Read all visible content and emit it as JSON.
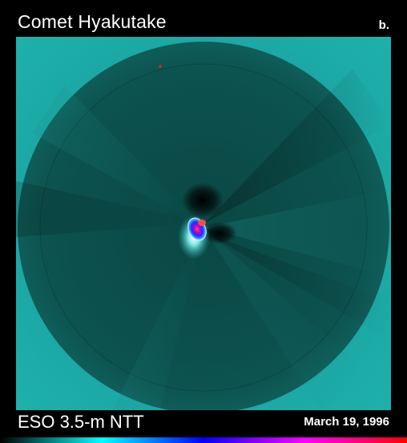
{
  "header": {
    "title": "Comet Hyakutake",
    "panel_label": "b."
  },
  "footer": {
    "instrument": "ESO 3.5-m NTT",
    "date": "March 19, 1996"
  },
  "image": {
    "background_color": "#1aa3a0",
    "disk_color": "#0b4f4c",
    "nucleus_colors": [
      "#ffffff",
      "#3aa0ff",
      "#1a3cff",
      "#b000c0",
      "#ff4040"
    ]
  },
  "colorbar": {
    "colors": [
      "#000000",
      "#00ffff",
      "#0000ff",
      "#ff00ff",
      "#ff0000"
    ]
  }
}
